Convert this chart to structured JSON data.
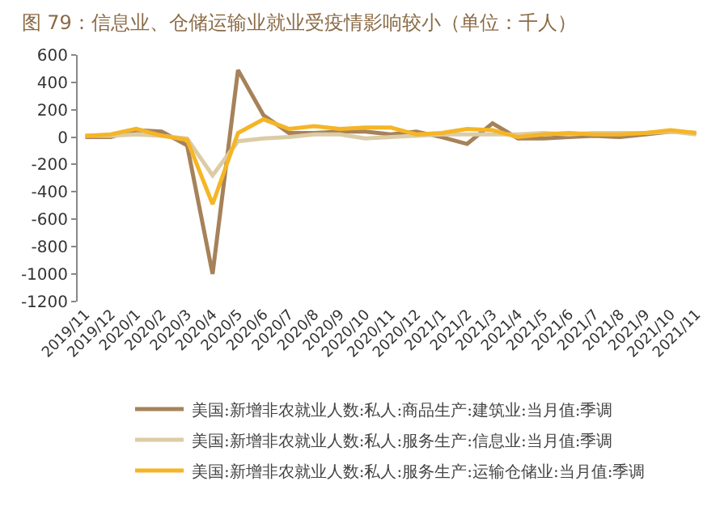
{
  "chart_data": {
    "type": "line",
    "title": "图 79：信息业、仓储运输业就业受疫情影响较小（单位：千人）",
    "categories": [
      "2019/11",
      "2019/12",
      "2020/1",
      "2020/2",
      "2020/3",
      "2020/4",
      "2020/5",
      "2020/6",
      "2020/7",
      "2020/8",
      "2020/9",
      "2020/10",
      "2020/11",
      "2020/12",
      "2021/1",
      "2021/2",
      "2021/3",
      "2021/4",
      "2021/5",
      "2021/6",
      "2021/7",
      "2021/8",
      "2021/9",
      "2021/10",
      "2021/11"
    ],
    "series": [
      {
        "name": "美国:新增非农就业人数:私人:商品生产:建筑业:当月值:季调",
        "color": "#a6825a",
        "values": [
          0,
          0,
          50,
          40,
          -60,
          -1000,
          490,
          160,
          30,
          30,
          40,
          40,
          20,
          40,
          0,
          -50,
          100,
          -10,
          -10,
          0,
          10,
          0,
          20,
          40,
          30
        ]
      },
      {
        "name": "美国:新增非农就业人数:私人:服务生产:信息业:当月值:季调",
        "color": "#dccca6",
        "values": [
          10,
          10,
          20,
          10,
          -10,
          -280,
          -30,
          -10,
          0,
          20,
          20,
          -10,
          0,
          10,
          20,
          20,
          20,
          20,
          30,
          20,
          30,
          30,
          30,
          40,
          20
        ]
      },
      {
        "name": "美国:新增非农就业人数:私人:服务生产:运输仓储业:当月值:季调",
        "color": "#f5b526",
        "values": [
          10,
          20,
          60,
          10,
          -20,
          -490,
          30,
          130,
          60,
          80,
          60,
          70,
          70,
          20,
          30,
          60,
          50,
          0,
          20,
          30,
          20,
          20,
          30,
          50,
          30
        ]
      }
    ],
    "ylim": [
      -1200,
      600
    ],
    "yticks": [
      -1200,
      -1000,
      -800,
      -600,
      -400,
      -200,
      0,
      200,
      400,
      600
    ],
    "grid": false,
    "legend": "bottom"
  }
}
